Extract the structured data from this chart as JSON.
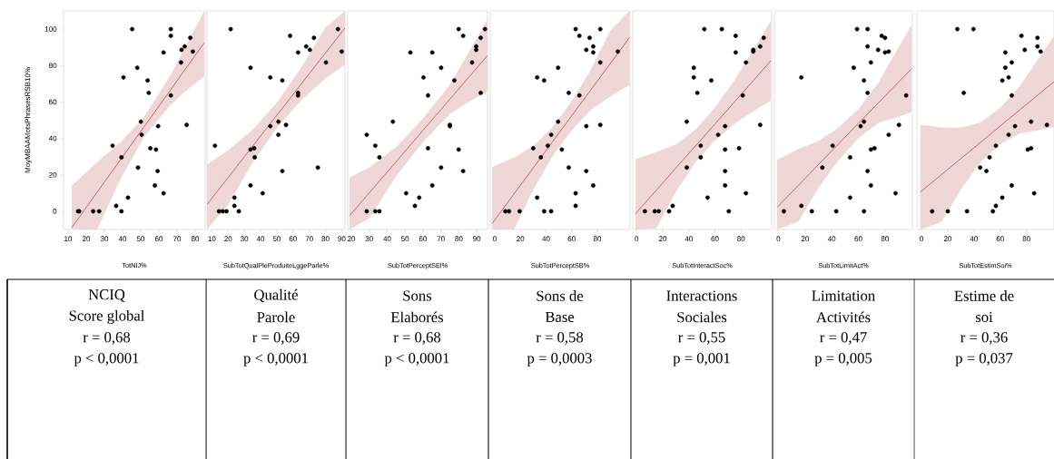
{
  "chart_data": [
    {
      "type": "scatter",
      "xlabel": "TotNIJ%",
      "ylabel": "MoyMBAAMotsPhrasesRSB10%",
      "xlim": [
        7.5,
        85.5
      ],
      "xticks": [
        10,
        20,
        30,
        40,
        50,
        60,
        70,
        80
      ],
      "ylim": [
        -10,
        110
      ],
      "yticks": [
        0,
        20,
        40,
        60,
        80,
        100
      ],
      "marker": "circle",
      "series": [
        {
          "color": "#000000",
          "x": [
            15.5,
            16.1,
            23.8,
            27.1,
            34.5,
            36.5,
            39.4,
            39.4,
            40.5,
            43,
            45.3,
            48.1,
            48.5,
            50.1,
            50.5,
            53.8,
            54.4,
            55.3,
            59.6,
            58.4,
            59.3,
            57.8,
            62.6,
            62.6,
            66.6,
            66.6,
            66.6,
            72.2,
            72.5,
            74.2,
            75.3,
            77.3,
            78.7
          ],
          "values": [
            0,
            0,
            0,
            0,
            36,
            3,
            29.6,
            0,
            73.5,
            7.5,
            100,
            78.8,
            24,
            49.2,
            42,
            71.8,
            65,
            34.6,
            46.7,
            33.9,
            22.1,
            14.2,
            87.2,
            9.9,
            100,
            96.3,
            63.6,
            81.7,
            88.6,
            90.5,
            47.4,
            95.2,
            87.7
          ]
        },
        {
          "type": "line",
          "marker": "none",
          "color": "#b84a4a",
          "x": [
            12,
            26,
            39,
            52,
            66,
            76,
            85
          ],
          "values": [
            -9,
            10.5,
            28.5,
            46.6,
            66,
            80,
            92.5
          ],
          "lower": [
            -10,
            -10,
            18,
            41,
            58,
            67,
            74
          ],
          "upper": [
            14,
            27,
            38,
            52,
            74,
            93,
            110
          ]
        }
      ],
      "annotations": [
        "NCIQ",
        "Score global",
        "r = 0,68",
        "p < 0,0001"
      ]
    },
    {
      "type": "scatter",
      "xlabel": "SubTotQualPleProduiteLggeParle%",
      "xlim": [
        7,
        92
      ],
      "xticks": [
        10,
        20,
        30,
        40,
        50,
        60,
        70,
        80,
        90
      ],
      "ylim": [
        -10,
        110
      ],
      "tick_labels": "x",
      "marker": "circle",
      "series": [
        {
          "color": "#000000",
          "x": [
            11.9,
            14.4,
            16.7,
            19,
            26.6,
            21.6,
            23.9,
            23.9,
            33.8,
            33.8,
            36.1,
            36.4,
            33.8,
            41.3,
            46,
            46,
            51,
            51,
            53.4,
            53.4,
            55.7,
            58.2,
            63.1,
            63.1,
            63.1,
            68.1,
            70.4,
            72.9,
            75.3,
            80.3,
            87.7,
            90
          ],
          "values": [
            36,
            0,
            0,
            0,
            0,
            100,
            7.5,
            3,
            78.8,
            33.9,
            34.6,
            29.6,
            14.2,
            9.9,
            73.5,
            46.7,
            49.2,
            42,
            71.8,
            22.1,
            47.4,
            96.3,
            87.2,
            65,
            63.6,
            90.5,
            88.6,
            95.2,
            24,
            81.7,
            100,
            87.7
          ]
        },
        {
          "type": "line",
          "marker": "none",
          "color": "#b84a4a",
          "x": [
            7,
            20,
            35,
            50,
            65,
            80,
            92
          ],
          "values": [
            3.7,
            18.5,
            35.6,
            52.7,
            69.8,
            86.9,
            100.6
          ],
          "lower": [
            -10,
            3.5,
            26.6,
            45.7,
            60.8,
            72.9,
            80.6
          ],
          "upper": [
            25.7,
            33.5,
            44.6,
            59.7,
            78.8,
            100.9,
            110
          ]
        }
      ],
      "annotations": [
        "Qualité",
        "Parole",
        "r = 0,69",
        "p < 0,0001"
      ]
    },
    {
      "type": "scatter",
      "xlabel": "SubTotPerceptSEl%",
      "xlim": [
        18,
        96
      ],
      "xticks": [
        20,
        30,
        40,
        50,
        60,
        70,
        80,
        90
      ],
      "ylim": [
        -10,
        110
      ],
      "tick_labels": "x",
      "marker": "circle",
      "series": [
        {
          "color": "#000000",
          "x": [
            28.6,
            33.4,
            35.7,
            28.6,
            33.4,
            35.7,
            43.2,
            50.6,
            53,
            55.5,
            57.9,
            60.3,
            62.8,
            62.8,
            65.2,
            65.2,
            70.1,
            70.1,
            75,
            75,
            77.5,
            79.9,
            79.9,
            82.4,
            82.4,
            87.4,
            89.7,
            89.7,
            92.2,
            92.2,
            94.6
          ],
          "values": [
            42,
            36,
            29.6,
            0,
            0,
            0,
            49.2,
            9.9,
            87.2,
            3,
            7.5,
            73.5,
            63.6,
            34.6,
            87.2,
            14.2,
            78.8,
            24,
            47.4,
            46.7,
            71.8,
            100,
            33.9,
            96.3,
            22.1,
            81.7,
            90.5,
            88.6,
            95.2,
            65,
            100
          ]
        },
        {
          "type": "line",
          "marker": "none",
          "color": "#b84a4a",
          "x": [
            19,
            30,
            45,
            60,
            75,
            88,
            96
          ],
          "values": [
            -2.5,
            10.1,
            27.2,
            44.4,
            61.5,
            76.4,
            85.5
          ],
          "lower": [
            -10,
            -3.9,
            19.2,
            37.9,
            53.5,
            61.4,
            65.5
          ],
          "upper": [
            18.5,
            24.1,
            35.2,
            50.9,
            69.5,
            91.4,
            105.5
          ]
        }
      ],
      "annotations": [
        "Sons",
        "Elaborés",
        "r = 0,68",
        "p < 0,0001"
      ]
    },
    {
      "type": "scatter",
      "xlabel": "SubTotPerceptSB%",
      "xlim": [
        -3.5,
        105.5
      ],
      "xticks": [
        0,
        20,
        40,
        60,
        80
      ],
      "ylim": [
        -10,
        110
      ],
      "tick_labels": "x",
      "marker": "circle",
      "series": [
        {
          "color": "#000000",
          "x": [
            8.3,
            11.1,
            19.4,
            30,
            33.1,
            33.1,
            36,
            38.5,
            38.5,
            44,
            41.4,
            44,
            49.4,
            49.4,
            52.3,
            57.7,
            57.7,
            63.1,
            63.1,
            63.1,
            66,
            66,
            71.4,
            71.4,
            71.4,
            74,
            76.8,
            76.8,
            76.8,
            82.3,
            82.3,
            82.3,
            96
          ],
          "values": [
            0,
            0,
            0,
            34.6,
            7.5,
            73.5,
            29.6,
            71.8,
            0,
            0,
            36,
            42,
            49.2,
            78.8,
            33.9,
            65,
            24,
            100,
            9.9,
            3,
            96.3,
            63.6,
            88.6,
            46.7,
            22.1,
            95.2,
            90.5,
            87.2,
            14.2,
            100,
            81.7,
            47.4,
            87.7
          ]
        },
        {
          "type": "line",
          "marker": "none",
          "color": "#b84a4a",
          "x": [
            -2,
            15,
            30,
            45,
            60,
            75,
            90,
            105
          ],
          "values": [
            -6.7,
            9.5,
            23.8,
            38.1,
            52.4,
            66.7,
            81,
            95.3
          ],
          "lower": [
            -10,
            -10,
            11.8,
            30.1,
            44.4,
            55.7,
            63,
            69.3
          ],
          "upper": [
            24.3,
            29.5,
            35.8,
            46.1,
            60.4,
            77.7,
            99,
            110
          ]
        }
      ],
      "annotations": [
        "Sons de",
        "Base",
        "r = 0,58",
        "p = 0,0003"
      ]
    },
    {
      "type": "scatter",
      "xlabel": "SubTotInteractSoc%",
      "xlim": [
        -3,
        103.5
      ],
      "xticks": [
        0,
        20,
        40,
        60,
        80
      ],
      "ylim": [
        -10,
        110
      ],
      "tick_labels": "x",
      "marker": "circle",
      "series": [
        {
          "color": "#000000",
          "x": [
            6.3,
            13.9,
            16.9,
            24.8,
            27.6,
            38.4,
            38.4,
            43.8,
            43.8,
            46.5,
            49.1,
            49.1,
            51.9,
            54.4,
            57.2,
            62.5,
            65.3,
            67.8,
            67.8,
            67.8,
            67.8,
            70.6,
            75.9,
            75.9,
            78.5,
            81.3,
            83.8,
            83.8,
            89.4,
            89.4,
            94.7,
            94.7,
            97.4
          ],
          "values": [
            0,
            0,
            0,
            0,
            3,
            49.2,
            24,
            78.8,
            73.5,
            65,
            36,
            29.6,
            100,
            7.5,
            71.8,
            42,
            100,
            46.7,
            33.9,
            22.1,
            14.2,
            0,
            96.3,
            87.2,
            34.6,
            63.6,
            81.7,
            9.9,
            88.6,
            87.7,
            47.4,
            90.5,
            95.2
          ]
        },
        {
          "type": "line",
          "marker": "none",
          "color": "#b84a4a",
          "x": [
            -1,
            15,
            30,
            45,
            60,
            75,
            90,
            103
          ],
          "values": [
            -1.4,
            11.5,
            23.7,
            35.8,
            47.9,
            60,
            72.2,
            82.7
          ],
          "lower": [
            -10,
            -9.5,
            10.7,
            26.8,
            38.9,
            48,
            55.2,
            60.7
          ],
          "upper": [
            28.6,
            32.5,
            36.7,
            44.8,
            56.9,
            72,
            89.2,
            104.7
          ]
        }
      ],
      "annotations": [
        "Interactions",
        "Sociales",
        "r = 0,55",
        "p = 0,001"
      ]
    },
    {
      "type": "scatter",
      "xlabel": "SubTotLimitAct%",
      "xlim": [
        -3,
        100.5
      ],
      "xticks": [
        0,
        20,
        40,
        60,
        80
      ],
      "ylim": [
        -10,
        110
      ],
      "tick_labels": "x",
      "marker": "circle",
      "series": [
        {
          "color": "#000000",
          "x": [
            4.1,
            17.2,
            17.2,
            25.1,
            33,
            40.7,
            43.4,
            53.8,
            53.8,
            56.5,
            59,
            64.2,
            64.2,
            61.7,
            64.2,
            66.9,
            66.9,
            66.9,
            66.9,
            69.4,
            69.4,
            69.4,
            72.1,
            74.8,
            77.5,
            80,
            80,
            82.7,
            82.7,
            87.9,
            90.4,
            95.8
          ],
          "values": [
            0,
            73.5,
            3,
            0,
            24,
            36,
            0,
            7.5,
            29.6,
            78.8,
            100,
            71.8,
            0,
            46.7,
            49.2,
            100,
            90.5,
            65,
            22.1,
            81.7,
            14.2,
            33.9,
            34.6,
            88.6,
            96.3,
            95.2,
            87.2,
            87.7,
            42,
            9.9,
            47.4,
            63.6
          ]
        },
        {
          "type": "line",
          "marker": "none",
          "color": "#b84a4a",
          "x": [
            -1,
            15,
            30,
            45,
            60,
            75,
            90,
            100
          ],
          "values": [
            2.2,
            14.2,
            25.6,
            36.9,
            48.2,
            59.5,
            70.8,
            78.3
          ],
          "lower": [
            -10,
            -5.8,
            12.6,
            27.9,
            40.2,
            48.5,
            51.8,
            54.3
          ],
          "upper": [
            28.2,
            34.2,
            38.6,
            45.9,
            56.2,
            70.5,
            89.8,
            102.3
          ]
        }
      ],
      "annotations": [
        "Limitation",
        "Activités",
        "r = 0,47",
        "p = 0,005"
      ]
    },
    {
      "type": "scatter",
      "xlabel": "SubTotEstimSoi%",
      "xlim": [
        -3.5,
        101
      ],
      "xticks": [
        0,
        20,
        40,
        60,
        80
      ],
      "ylim": [
        -10,
        110
      ],
      "tick_labels": "x",
      "marker": "circle",
      "series": [
        {
          "color": "#000000",
          "x": [
            8.1,
            20.1,
            27.3,
            32.2,
            34.7,
            39.6,
            44.7,
            49.5,
            51.9,
            54.4,
            56.7,
            56.7,
            61.6,
            61.6,
            63.9,
            63.9,
            66.4,
            66.4,
            68.8,
            68.8,
            68.8,
            71.3,
            76.2,
            78.7,
            81,
            83.5,
            83.5,
            85.9,
            88.4,
            88.4,
            90.8,
            95.6
          ],
          "values": [
            0,
            0,
            100,
            65,
            0,
            100,
            24,
            22.1,
            29.6,
            0,
            3,
            36,
            71.8,
            7.5,
            87.2,
            78.8,
            73.5,
            42,
            81.7,
            63.6,
            14.2,
            46.7,
            96.3,
            88.6,
            33.9,
            34.6,
            49.2,
            9.9,
            95.2,
            90.5,
            87.7,
            47.4
          ]
        },
        {
          "type": "line",
          "marker": "none",
          "color": "#b84a4a",
          "x": [
            -1,
            15,
            30,
            45,
            60,
            75,
            90,
            101
          ],
          "values": [
            10.5,
            20,
            28.9,
            37.8,
            46.8,
            55.7,
            64.6,
            71.1
          ],
          "lower": [
            -10,
            -6,
            11.9,
            26.8,
            36.8,
            42.7,
            44.6,
            46.1
          ],
          "upper": [
            47.5,
            46,
            45.9,
            48.8,
            56.8,
            68.7,
            84.6,
            96.1
          ]
        }
      ],
      "annotations": [
        "Estime de",
        "soi",
        "r = 0,36",
        "p = 0,037"
      ]
    }
  ]
}
